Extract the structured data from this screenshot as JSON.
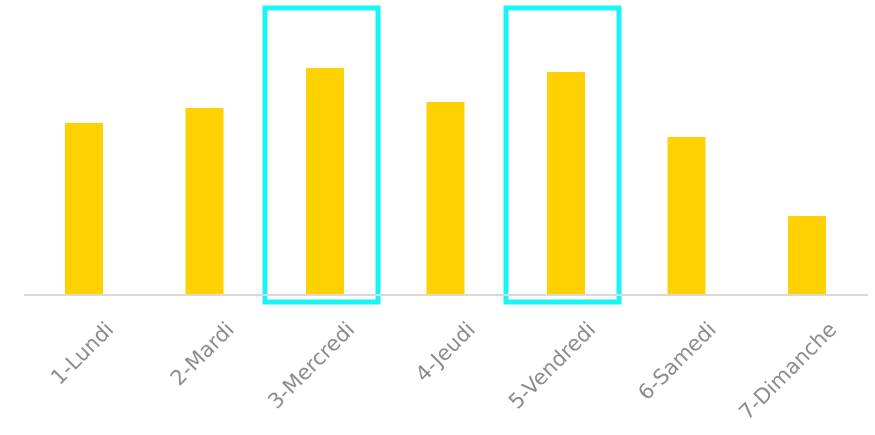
{
  "chart_data": {
    "type": "bar",
    "categories": [
      "1-Lundi",
      "2-Mardi",
      "3-Mercredi",
      "4-Jeudi",
      "5-Vendredi",
      "6-Samedi",
      "7-Dimanche"
    ],
    "values": [
      172,
      187,
      227,
      193,
      223,
      158,
      79
    ],
    "ylim": [
      0,
      290
    ],
    "grid": false,
    "legend": "none",
    "highlighted_categories": [
      "3-Mercredi",
      "5-Vendredi"
    ],
    "colors": {
      "bar": "#FFD100",
      "highlight": "#19F5F5",
      "axis": "#d9d9d9",
      "tick_label": "#8c8c8c"
    }
  }
}
